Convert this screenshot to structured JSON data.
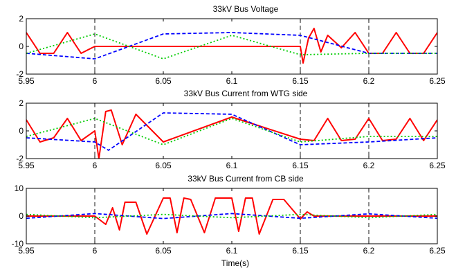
{
  "chart_data": [
    {
      "type": "line",
      "title": "33kV Bus Voltage",
      "xlim": [
        5.95,
        6.25
      ],
      "ylim": [
        -2,
        2
      ],
      "xticks": [
        "5.95",
        "6",
        "6.05",
        "6.1",
        "6.15",
        "6.2",
        "6.25"
      ],
      "yticks": [
        "-2",
        "0",
        "2"
      ],
      "xgrid": [
        6.0,
        6.15,
        6.2
      ],
      "series": [
        {
          "color": "#ff0000",
          "style": "solid",
          "x": [
            5.95,
            5.96,
            5.97,
            5.98,
            5.99,
            6.0,
            6.05,
            6.1,
            6.15,
            6.152,
            6.156,
            6.16,
            6.165,
            6.17,
            6.18,
            6.19,
            6.2,
            6.21,
            6.22,
            6.23,
            6.24,
            6.25
          ],
          "y": [
            1.0,
            -0.5,
            -0.5,
            1.0,
            -0.5,
            0.0,
            0.0,
            0.0,
            0.0,
            -1.2,
            0.6,
            1.3,
            -0.4,
            0.8,
            -0.1,
            1.0,
            -0.5,
            -0.5,
            1.0,
            -0.5,
            -0.5,
            1.0
          ]
        },
        {
          "color": "#0000ff",
          "style": "dashed",
          "x": [
            5.95,
            6.0,
            6.05,
            6.1,
            6.15,
            6.2,
            6.25
          ],
          "y": [
            -0.5,
            -0.9,
            0.9,
            1.0,
            0.8,
            -0.5,
            -0.5
          ]
        },
        {
          "color": "#00cc00",
          "style": "dotted",
          "x": [
            5.95,
            6.0,
            6.05,
            6.1,
            6.15,
            6.2,
            6.25
          ],
          "y": [
            -0.5,
            0.9,
            -0.9,
            0.8,
            -0.6,
            -0.5,
            -0.5
          ]
        }
      ]
    },
    {
      "type": "line",
      "title": "33kV Bus Current from WTG side",
      "xlim": [
        5.95,
        6.25
      ],
      "ylim": [
        -2,
        2
      ],
      "xticks": [
        "5.95",
        "6",
        "6.05",
        "6.1",
        "6.15",
        "6.2",
        "6.25"
      ],
      "yticks": [
        "-2",
        "0",
        "2"
      ],
      "xgrid": [
        6.0,
        6.15,
        6.2
      ],
      "series": [
        {
          "color": "#ff0000",
          "style": "solid",
          "x": [
            5.95,
            5.96,
            5.97,
            5.98,
            5.99,
            6.0,
            6.003,
            6.008,
            6.012,
            6.02,
            6.03,
            6.05,
            6.1,
            6.15,
            6.16,
            6.17,
            6.18,
            6.19,
            6.2,
            6.21,
            6.22,
            6.23,
            6.24,
            6.25
          ],
          "y": [
            0.8,
            -0.8,
            -0.5,
            0.9,
            -0.7,
            0.0,
            -2.0,
            1.4,
            1.5,
            -1.0,
            1.2,
            -0.8,
            1.0,
            -0.6,
            -0.7,
            0.9,
            -0.7,
            -0.6,
            0.9,
            -0.7,
            -0.6,
            0.9,
            -0.7,
            0.8
          ]
        },
        {
          "color": "#0000ff",
          "style": "dashed",
          "x": [
            5.95,
            6.0,
            6.01,
            6.05,
            6.1,
            6.15,
            6.2,
            6.25
          ],
          "y": [
            -0.5,
            -0.8,
            -1.4,
            1.3,
            1.2,
            -1.0,
            -0.8,
            -0.5
          ]
        },
        {
          "color": "#00cc00",
          "style": "dotted",
          "x": [
            5.95,
            6.0,
            6.05,
            6.1,
            6.15,
            6.2,
            6.25
          ],
          "y": [
            -0.4,
            0.9,
            -1.0,
            0.9,
            -0.8,
            -0.4,
            -0.4
          ]
        }
      ]
    },
    {
      "type": "line",
      "title": "33kV Bus Current from CB side",
      "xlabel": "Time(s)",
      "xlim": [
        5.95,
        6.25
      ],
      "ylim": [
        -10,
        10
      ],
      "xticks": [
        "5.95",
        "6",
        "6.05",
        "6.1",
        "6.15",
        "6.2",
        "6.25"
      ],
      "yticks": [
        "-10",
        "0",
        "10"
      ],
      "xgrid": [
        6.0,
        6.15,
        6.2
      ],
      "series": [
        {
          "color": "#ff0000",
          "style": "solid",
          "x": [
            5.95,
            6.0,
            6.008,
            6.013,
            6.018,
            6.022,
            6.03,
            6.038,
            6.05,
            6.055,
            6.06,
            6.065,
            6.07,
            6.08,
            6.088,
            6.1,
            6.105,
            6.11,
            6.115,
            6.12,
            6.13,
            6.138,
            6.15,
            6.155,
            6.16,
            6.165,
            6.25
          ],
          "y": [
            0.0,
            0.0,
            -3.0,
            3.0,
            -5.0,
            5.0,
            5.0,
            -6.5,
            6.5,
            6.5,
            -6.0,
            6.5,
            6.0,
            -6.0,
            6.5,
            6.5,
            -5.5,
            6.5,
            6.5,
            -6.5,
            6.0,
            6.0,
            -1.0,
            1.5,
            0.0,
            0.0,
            0.0
          ]
        },
        {
          "color": "#0000ff",
          "style": "dashed",
          "x": [
            5.95,
            6.0,
            6.05,
            6.1,
            6.15,
            6.2,
            6.25
          ],
          "y": [
            -0.8,
            0.9,
            -0.9,
            0.9,
            -0.8,
            0.8,
            -0.8
          ]
        },
        {
          "color": "#00cc00",
          "style": "dotted",
          "x": [
            5.95,
            6.0,
            6.05,
            6.1,
            6.15,
            6.2,
            6.25
          ],
          "y": [
            0.6,
            -0.6,
            0.6,
            -0.6,
            0.6,
            -0.6,
            0.6
          ]
        }
      ]
    }
  ]
}
